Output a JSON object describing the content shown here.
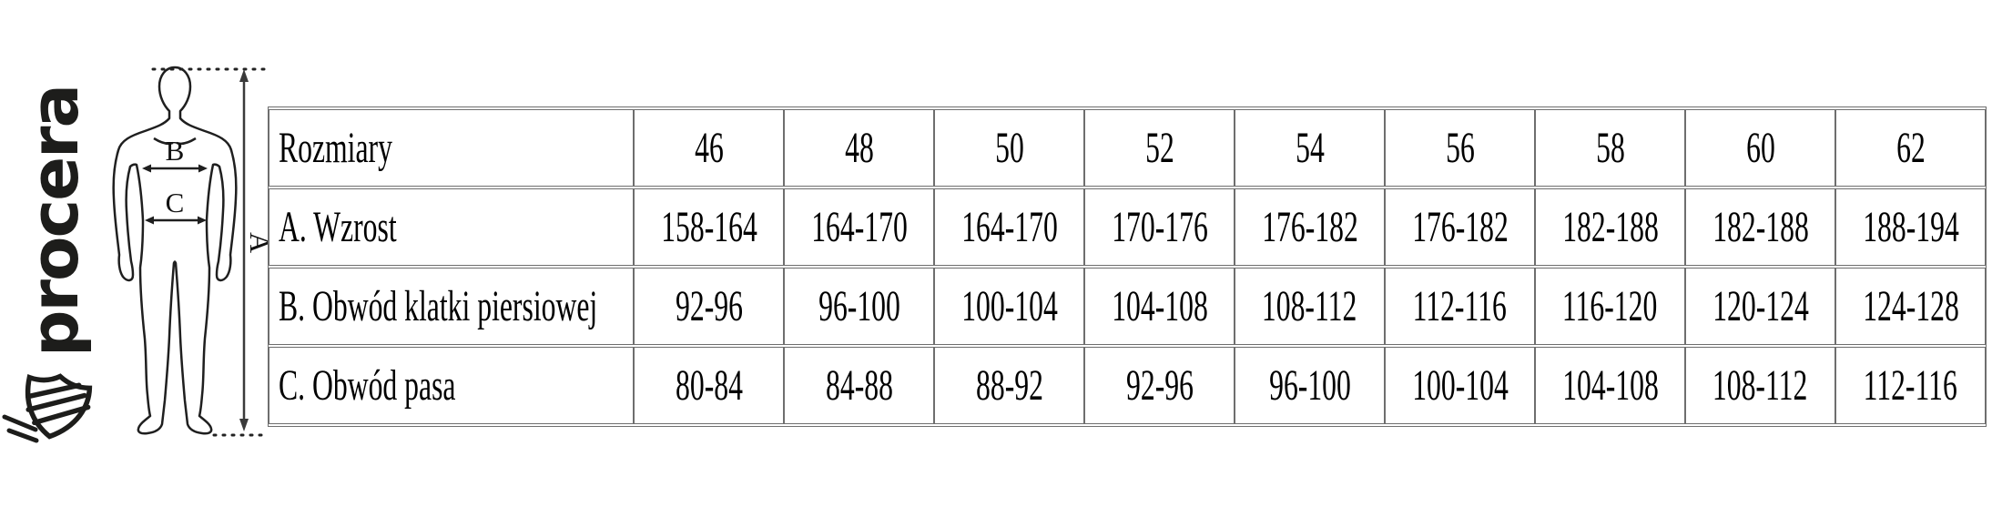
{
  "brand": {
    "logo_text": "procera",
    "logo_color": "#1d1d1b",
    "icons": {
      "brand_mark": "shield-stripes-icon"
    }
  },
  "diagram": {
    "figure": "standing-man-outline",
    "chest_label": "B",
    "waist_label": "C",
    "height_pointer_label": "A"
  },
  "size_table": {
    "header_label": "Rozmiary",
    "sizes": [
      "46",
      "48",
      "50",
      "52",
      "54",
      "56",
      "58",
      "60",
      "62"
    ],
    "rows": [
      {
        "label": "A. Wzrost",
        "values": [
          "158-164",
          "164-170",
          "164-170",
          "170-176",
          "176-182",
          "176-182",
          "182-188",
          "182-188",
          "188-194"
        ]
      },
      {
        "label": "B. Obwód klatki piersiowej",
        "values": [
          "92-96",
          "96-100",
          "100-104",
          "104-108",
          "108-112",
          "112-116",
          "116-120",
          "120-124",
          "124-128"
        ]
      },
      {
        "label": "C. Obwód pasa",
        "values": [
          "80-84",
          "84-88",
          "88-92",
          "92-96",
          "96-100",
          "100-104",
          "104-108",
          "108-112",
          "112-116"
        ]
      }
    ],
    "border_color": "#6e6e6e",
    "text_color": "#000000"
  }
}
